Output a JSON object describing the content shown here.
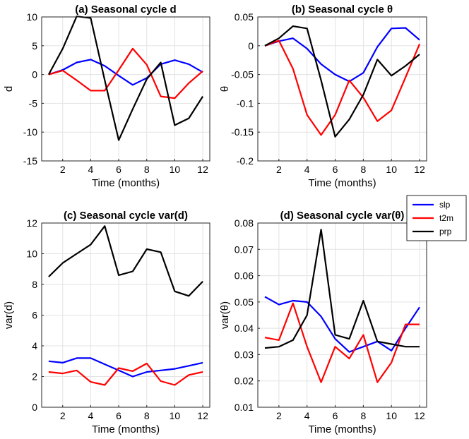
{
  "chart_data": [
    {
      "type": "line",
      "title": "(a) Seasonal cycle d",
      "xlabel": "Time (months)",
      "ylabel": "d",
      "xlim": [
        0.5,
        12.5
      ],
      "ylim": [
        -15,
        10
      ],
      "xticks": [
        2,
        4,
        6,
        8,
        10,
        12
      ],
      "yticks": [
        -15,
        -10,
        -5,
        0,
        5,
        10
      ],
      "grid": true,
      "x": [
        1,
        2,
        3,
        4,
        5,
        6,
        7,
        8,
        9,
        10,
        11,
        12
      ],
      "series": [
        {
          "name": "slp",
          "color": "#0000ff",
          "values": [
            0,
            0.8,
            2.1,
            2.6,
            1.5,
            -0.2,
            -1.8,
            -0.6,
            1.8,
            2.5,
            1.8,
            0.4
          ]
        },
        {
          "name": "t2m",
          "color": "#ff0000",
          "values": [
            0,
            0.7,
            -1.0,
            -2.8,
            -2.8,
            0.8,
            4.5,
            1.7,
            -3.8,
            -4.1,
            -1.5,
            0.6
          ]
        },
        {
          "name": "prp",
          "color": "#000000",
          "values": [
            0,
            4.5,
            10.1,
            9.8,
            -1.0,
            -11.4,
            -6.0,
            -0.8,
            2.1,
            -8.8,
            -7.6,
            -3.8
          ]
        }
      ]
    },
    {
      "type": "line",
      "title": "(b) Seasonal cycle θ",
      "xlabel": "Time (months)",
      "ylabel": "θ",
      "xlim": [
        0.5,
        12.5
      ],
      "ylim": [
        -0.2,
        0.05
      ],
      "xticks": [
        2,
        4,
        6,
        8,
        10,
        12
      ],
      "yticks": [
        -0.2,
        -0.15,
        -0.1,
        -0.05,
        0,
        0.05
      ],
      "ytick_labels": [
        "-0.2",
        "-0.15",
        "-0.1",
        "-0.05",
        "0",
        "0.05"
      ],
      "grid": true,
      "x": [
        1,
        2,
        3,
        4,
        5,
        6,
        7,
        8,
        9,
        10,
        11,
        12
      ],
      "series": [
        {
          "name": "slp",
          "color": "#0000ff",
          "values": [
            0,
            0.008,
            0.013,
            -0.005,
            -0.032,
            -0.05,
            -0.062,
            -0.047,
            -0.002,
            0.03,
            0.031,
            0.01
          ]
        },
        {
          "name": "t2m",
          "color": "#ff0000",
          "values": [
            0,
            0.009,
            -0.04,
            -0.12,
            -0.155,
            -0.12,
            -0.06,
            -0.09,
            -0.131,
            -0.112,
            -0.055,
            0.003
          ]
        },
        {
          "name": "prp",
          "color": "#000000",
          "values": [
            0,
            0.013,
            0.034,
            0.03,
            -0.06,
            -0.158,
            -0.128,
            -0.085,
            -0.024,
            -0.052,
            -0.035,
            -0.015
          ]
        }
      ]
    },
    {
      "type": "line",
      "title": "(c) Seasonal cycle var(d)",
      "xlabel": "Time (months)",
      "ylabel": "var(d)",
      "xlim": [
        0.5,
        12.5
      ],
      "ylim": [
        0,
        12
      ],
      "xticks": [
        2,
        4,
        6,
        8,
        10,
        12
      ],
      "yticks": [
        0,
        2,
        4,
        6,
        8,
        10,
        12
      ],
      "grid": true,
      "x": [
        1,
        2,
        3,
        4,
        5,
        6,
        7,
        8,
        9,
        10,
        11,
        12
      ],
      "series": [
        {
          "name": "slp",
          "color": "#0000ff",
          "values": [
            3.0,
            2.9,
            3.2,
            3.2,
            2.8,
            2.4,
            2.0,
            2.3,
            2.4,
            2.5,
            2.7,
            2.9
          ]
        },
        {
          "name": "t2m",
          "color": "#ff0000",
          "values": [
            2.3,
            2.2,
            2.4,
            1.65,
            1.45,
            2.55,
            2.35,
            2.85,
            1.7,
            1.45,
            2.1,
            2.3
          ]
        },
        {
          "name": "prp",
          "color": "#000000",
          "values": [
            8.5,
            9.4,
            10.0,
            10.6,
            11.8,
            8.6,
            8.85,
            10.3,
            10.1,
            7.55,
            7.25,
            8.2
          ]
        }
      ]
    },
    {
      "type": "line",
      "title": "(d) Seasonal cycle var(θ)",
      "xlabel": "Time (months)",
      "ylabel": "var(θ)",
      "xlim": [
        0.5,
        12.5
      ],
      "ylim": [
        0.01,
        0.08
      ],
      "xticks": [
        2,
        4,
        6,
        8,
        10,
        12
      ],
      "yticks": [
        0.01,
        0.02,
        0.03,
        0.04,
        0.05,
        0.06,
        0.07,
        0.08
      ],
      "ytick_labels": [
        "0.01",
        "0.02",
        "0.03",
        "0.04",
        "0.05",
        "0.06",
        "0.07",
        "0.08"
      ],
      "grid": true,
      "x": [
        1,
        2,
        3,
        4,
        5,
        6,
        7,
        8,
        9,
        10,
        11,
        12
      ],
      "series": [
        {
          "name": "slp",
          "color": "#0000ff",
          "values": [
            0.052,
            0.049,
            0.0505,
            0.05,
            0.0445,
            0.036,
            0.031,
            0.033,
            0.035,
            0.0315,
            0.04,
            0.048
          ]
        },
        {
          "name": "t2m",
          "color": "#ff0000",
          "values": [
            0.0365,
            0.0355,
            0.0495,
            0.033,
            0.0195,
            0.033,
            0.0285,
            0.0375,
            0.0195,
            0.027,
            0.0415,
            0.0415
          ]
        },
        {
          "name": "prp",
          "color": "#000000",
          "values": [
            0.0325,
            0.033,
            0.0355,
            0.045,
            0.0775,
            0.0375,
            0.036,
            0.0505,
            0.035,
            0.034,
            0.033,
            0.033
          ]
        }
      ]
    }
  ],
  "legend": {
    "placement": "right, between top and bottom panels",
    "entries": [
      {
        "label": "slp",
        "color": "#0000ff"
      },
      {
        "label": "t2m",
        "color": "#ff0000"
      },
      {
        "label": "prp",
        "color": "#000000"
      }
    ]
  }
}
